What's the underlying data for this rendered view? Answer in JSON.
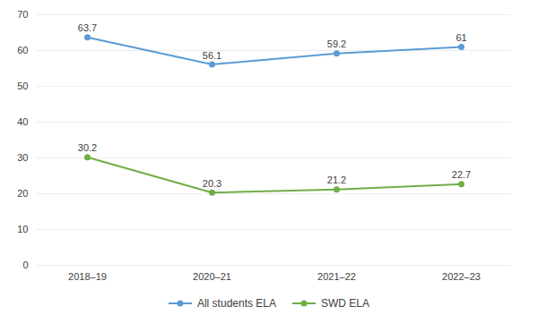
{
  "chart_data": {
    "type": "line",
    "categories": [
      "2018–19",
      "2020–21",
      "2021–22",
      "2022–23"
    ],
    "series": [
      {
        "name": "All students ELA",
        "color": "#5b9bd5",
        "values": [
          63.7,
          56.1,
          59.2,
          61
        ]
      },
      {
        "name": "SWD ELA",
        "color": "#70ad47",
        "values": [
          30.2,
          20.3,
          21.2,
          22.7
        ]
      }
    ],
    "ylim": [
      0,
      70
    ],
    "yticks": [
      0,
      10,
      20,
      30,
      40,
      50,
      60,
      70
    ],
    "grid": true,
    "data_labels": true,
    "legend": "bottom",
    "marker": "circle"
  }
}
